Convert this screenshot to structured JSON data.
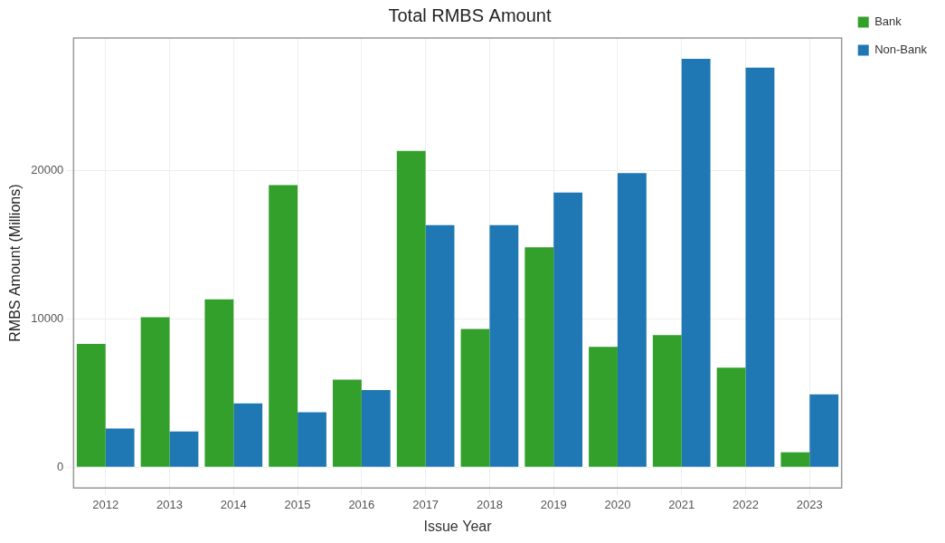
{
  "chart_data": {
    "type": "bar",
    "title": "Total RMBS Amount",
    "x_label": "Issue Year",
    "y_label": "RMBS Amount (Millions)",
    "categories": [
      "2012",
      "2013",
      "2014",
      "2015",
      "2016",
      "2017",
      "2018",
      "2019",
      "2020",
      "2021",
      "2022",
      "2023"
    ],
    "series": [
      {
        "name": "Bank",
        "color": "#33a02c",
        "values": [
          8300,
          10100,
          11300,
          19000,
          5900,
          21300,
          9300,
          14800,
          8100,
          8900,
          6700,
          1000
        ]
      },
      {
        "name": "Non-Bank",
        "color": "#1f78b4",
        "values": [
          2600,
          2400,
          4300,
          3700,
          5200,
          16300,
          16300,
          18500,
          19800,
          27500,
          26900,
          4900
        ]
      }
    ],
    "ylim": [
      -1400,
      28900
    ],
    "yticks": [
      0,
      10000,
      20000
    ],
    "grid": true,
    "legend": "right"
  }
}
